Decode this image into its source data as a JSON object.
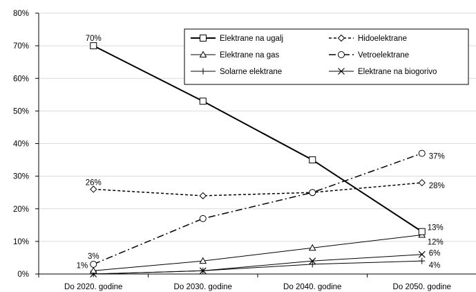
{
  "chart_data": {
    "type": "line",
    "title": "",
    "xlabel": "",
    "ylabel": "",
    "categories": [
      "Do 2020. godine",
      "Do 2030. godine",
      "Do 2040. godine",
      "Do 2050. godine"
    ],
    "ylim": [
      0,
      80
    ],
    "yticks": [
      "0%",
      "10%",
      "20%",
      "30%",
      "40%",
      "50%",
      "60%",
      "70%",
      "80%"
    ],
    "grid": "horizontal",
    "legend_position": "top-right",
    "series": [
      {
        "name": "Elektrane na ugalj",
        "values": [
          70,
          53,
          35,
          13
        ],
        "marker": "square",
        "dash": "solid",
        "weight": "bold",
        "labels": [
          "70%",
          "",
          "",
          "13%"
        ]
      },
      {
        "name": "Hidoelektrane",
        "values": [
          26,
          24,
          25,
          28
        ],
        "marker": "diamond",
        "dash": "dashed",
        "weight": "normal",
        "labels": [
          "26%",
          "",
          "",
          "28%"
        ]
      },
      {
        "name": "Elektrane na gas",
        "values": [
          1,
          4,
          8,
          12
        ],
        "marker": "triangle",
        "dash": "solid",
        "weight": "thin",
        "labels": [
          "1%",
          "",
          "",
          "12%"
        ]
      },
      {
        "name": "Vetroelektrane",
        "values": [
          3,
          17,
          25,
          37
        ],
        "marker": "circle",
        "dash": "dashdot",
        "weight": "normal",
        "labels": [
          "3%",
          "",
          "",
          "37%"
        ]
      },
      {
        "name": "Solarne elektrane",
        "values": [
          0,
          1,
          3,
          4
        ],
        "marker": "plus",
        "dash": "solid",
        "weight": "thin",
        "labels": [
          "",
          "",
          "",
          "4%"
        ]
      },
      {
        "name": "Elektrane na biogorivo",
        "values": [
          0,
          1,
          4,
          6
        ],
        "marker": "cross",
        "dash": "solid",
        "weight": "thin",
        "labels": [
          "",
          "",
          "",
          "6%"
        ]
      }
    ]
  }
}
